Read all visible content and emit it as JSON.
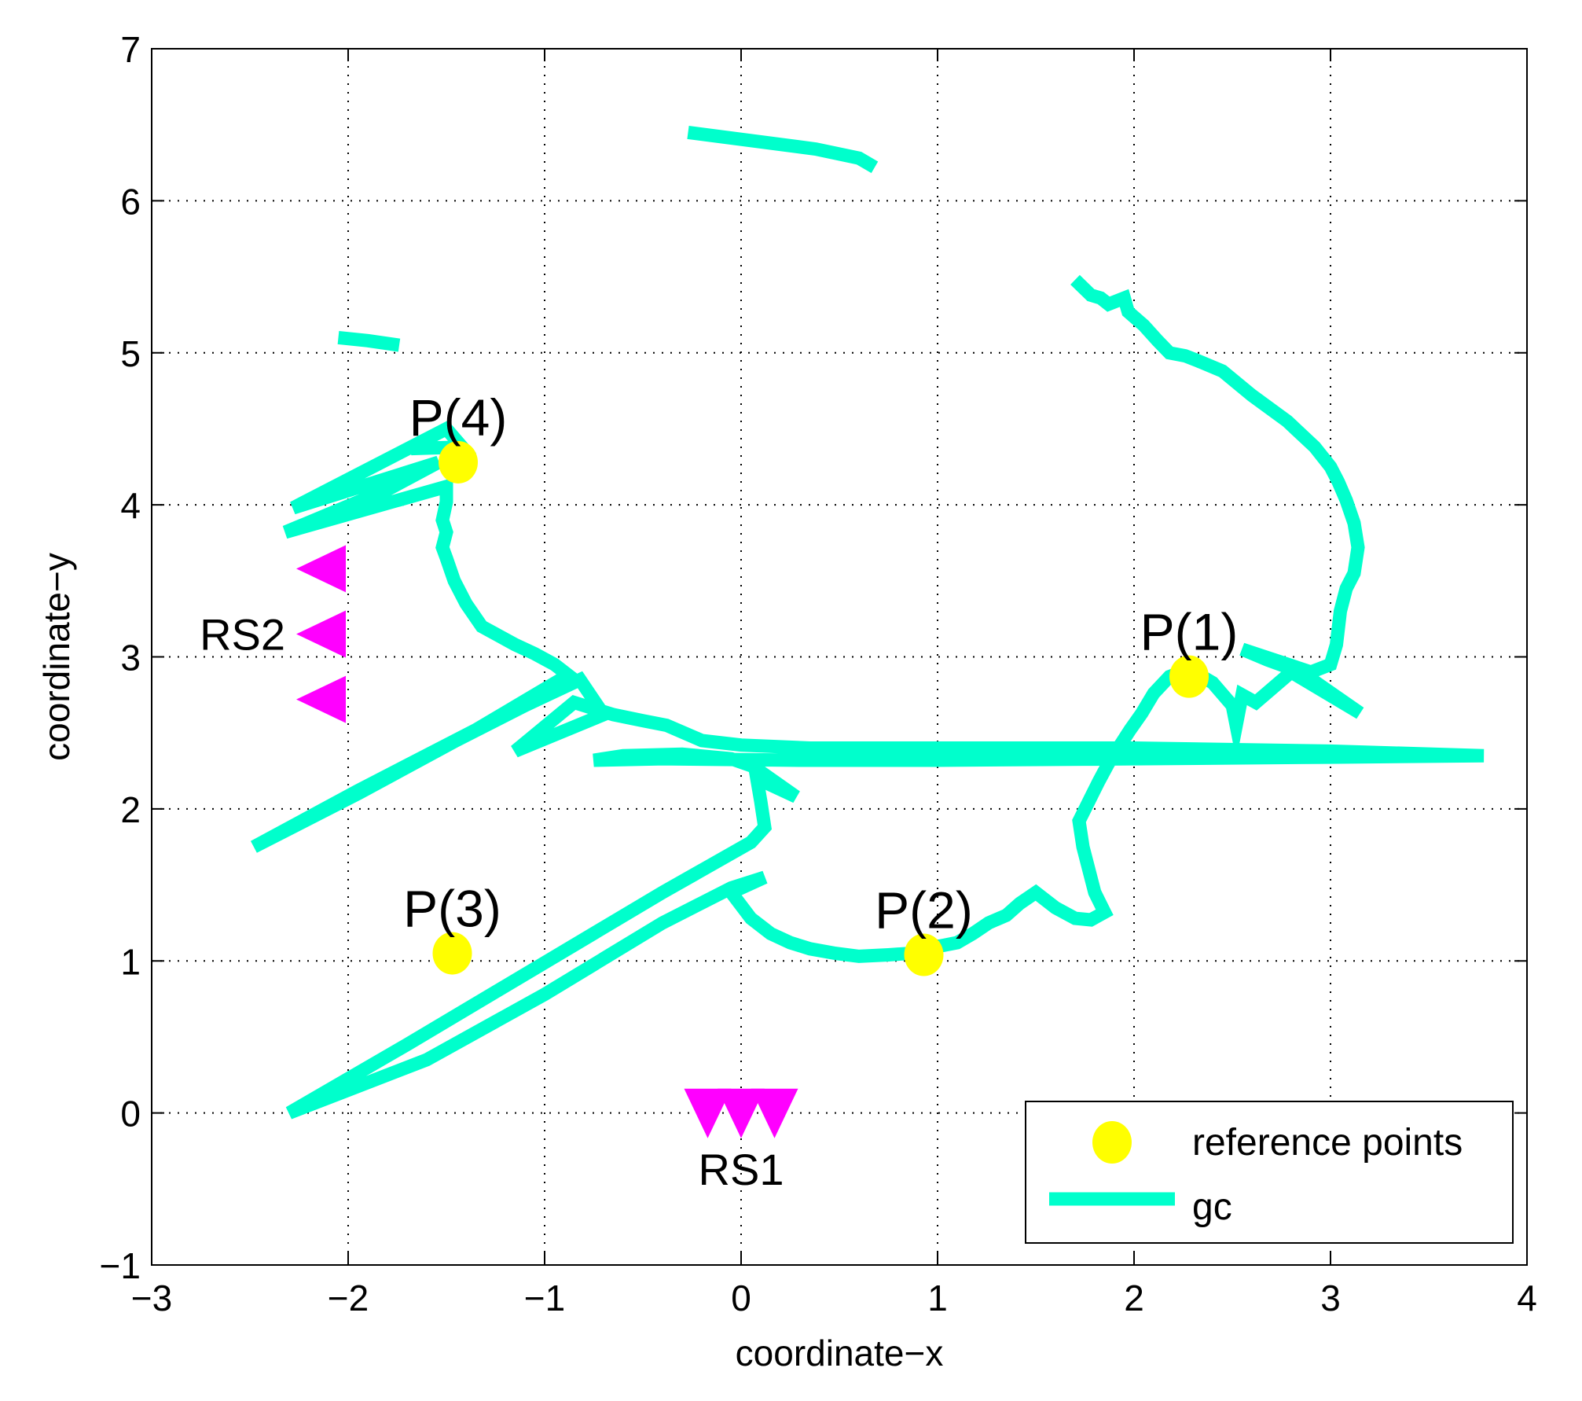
{
  "chart_data": {
    "type": "scatter",
    "title": "",
    "xlabel": "coordinate−x",
    "ylabel": "coordinate−y",
    "xlim": [
      -3,
      4
    ],
    "ylim": [
      -1,
      7
    ],
    "x_ticks": [
      -3,
      -2,
      -1,
      0,
      1,
      2,
      3,
      4
    ],
    "y_ticks": [
      -1,
      0,
      1,
      2,
      3,
      4,
      5,
      6,
      7
    ],
    "x_tick_labels": [
      "−3",
      "−2",
      "−1",
      "0",
      "1",
      "2",
      "3",
      "4"
    ],
    "y_tick_labels": [
      "−1",
      "0",
      "1",
      "2",
      "3",
      "4",
      "5",
      "6",
      "7"
    ],
    "grid": "dotted",
    "legend_position": "bottom-right",
    "colors": {
      "reference": "#ffff00",
      "gc": "#00ffcc",
      "station": "#ff00ff"
    },
    "reference_points": {
      "name": "reference points",
      "points": [
        {
          "label": "P(1)",
          "x": 2.28,
          "y": 2.87
        },
        {
          "label": "P(2)",
          "x": 0.93,
          "y": 1.04
        },
        {
          "label": "P(3)",
          "x": -1.47,
          "y": 1.05
        },
        {
          "label": "P(4)",
          "x": -1.44,
          "y": 4.28
        }
      ]
    },
    "gc_series": {
      "name": "gc",
      "segments": [
        [
          [
            -0.27,
            6.45
          ],
          [
            0.38,
            6.34
          ],
          [
            0.6,
            6.28
          ],
          [
            0.68,
            6.22
          ]
        ],
        [
          [
            -2.05,
            5.1
          ],
          [
            -1.9,
            5.08
          ],
          [
            -1.74,
            5.05
          ]
        ],
        [
          [
            1.7,
            5.48
          ],
          [
            1.78,
            5.38
          ],
          [
            1.83,
            5.36
          ],
          [
            1.87,
            5.32
          ],
          [
            1.95,
            5.36
          ],
          [
            1.97,
            5.27
          ],
          [
            2.05,
            5.18
          ],
          [
            2.12,
            5.08
          ],
          [
            2.18,
            5.0
          ],
          [
            2.26,
            4.98
          ],
          [
            2.32,
            4.95
          ],
          [
            2.45,
            4.88
          ],
          [
            2.6,
            4.72
          ],
          [
            2.78,
            4.55
          ],
          [
            2.92,
            4.38
          ],
          [
            3.0,
            4.25
          ],
          [
            3.04,
            4.15
          ],
          [
            3.08,
            4.03
          ],
          [
            3.12,
            3.88
          ],
          [
            3.14,
            3.72
          ],
          [
            3.12,
            3.55
          ],
          [
            3.08,
            3.45
          ],
          [
            3.05,
            3.3
          ],
          [
            3.03,
            3.08
          ],
          [
            3.0,
            2.95
          ],
          [
            2.9,
            2.9
          ],
          [
            2.55,
            3.05
          ],
          [
            2.68,
            2.98
          ],
          [
            2.85,
            2.9
          ],
          [
            3.15,
            2.63
          ],
          [
            2.8,
            2.9
          ],
          [
            2.62,
            2.7
          ],
          [
            2.55,
            2.75
          ],
          [
            2.52,
            2.55
          ],
          [
            2.5,
            2.68
          ],
          [
            2.4,
            2.83
          ],
          [
            2.28,
            2.92
          ],
          [
            2.18,
            2.87
          ],
          [
            2.1,
            2.76
          ],
          [
            2.04,
            2.63
          ],
          [
            1.98,
            2.52
          ],
          [
            1.92,
            2.4
          ],
          [
            1.87,
            2.3
          ],
          [
            1.82,
            2.18
          ],
          [
            1.77,
            2.05
          ],
          [
            1.72,
            1.92
          ],
          [
            1.74,
            1.75
          ],
          [
            1.8,
            1.45
          ],
          [
            1.85,
            1.32
          ],
          [
            1.78,
            1.27
          ],
          [
            1.7,
            1.28
          ],
          [
            1.6,
            1.35
          ],
          [
            1.5,
            1.45
          ],
          [
            1.42,
            1.38
          ],
          [
            1.35,
            1.3
          ],
          [
            1.26,
            1.25
          ],
          [
            1.18,
            1.18
          ],
          [
            1.1,
            1.12
          ],
          [
            1.02,
            1.1
          ],
          [
            0.95,
            1.08
          ],
          [
            0.86,
            1.05
          ],
          [
            0.75,
            1.04
          ],
          [
            0.6,
            1.03
          ],
          [
            0.48,
            1.05
          ],
          [
            0.35,
            1.08
          ],
          [
            0.25,
            1.12
          ],
          [
            0.15,
            1.18
          ],
          [
            0.05,
            1.28
          ],
          [
            -0.05,
            1.45
          ],
          [
            0.12,
            1.55
          ],
          [
            -0.05,
            1.48
          ],
          [
            -0.4,
            1.25
          ],
          [
            -1.0,
            0.78
          ],
          [
            -1.6,
            0.35
          ],
          [
            -2.3,
            0.0
          ],
          [
            -1.7,
            0.45
          ],
          [
            -1.05,
            0.95
          ],
          [
            -0.4,
            1.45
          ],
          [
            0.05,
            1.78
          ],
          [
            0.12,
            1.88
          ],
          [
            0.1,
            2.05
          ],
          [
            0.08,
            2.2
          ],
          [
            0.28,
            2.08
          ],
          [
            0.06,
            2.28
          ],
          [
            -0.05,
            2.33
          ],
          [
            -0.3,
            2.36
          ],
          [
            -0.6,
            2.35
          ],
          [
            -0.75,
            2.32
          ],
          [
            -0.4,
            2.33
          ],
          [
            0.3,
            2.32
          ],
          [
            1.0,
            2.32
          ],
          [
            2.0,
            2.33
          ],
          [
            3.0,
            2.34
          ],
          [
            3.78,
            2.35
          ],
          [
            3.0,
            2.38
          ],
          [
            2.0,
            2.4
          ],
          [
            1.0,
            2.4
          ],
          [
            0.35,
            2.4
          ],
          [
            0.0,
            2.42
          ],
          [
            -0.2,
            2.45
          ],
          [
            -0.38,
            2.55
          ],
          [
            -0.5,
            2.58
          ],
          [
            -0.65,
            2.62
          ],
          [
            -0.85,
            2.7
          ],
          [
            -1.15,
            2.38
          ],
          [
            -0.7,
            2.62
          ],
          [
            -0.82,
            2.85
          ],
          [
            -1.1,
            2.68
          ],
          [
            -1.45,
            2.45
          ],
          [
            -1.95,
            2.1
          ],
          [
            -2.48,
            1.75
          ],
          [
            -1.95,
            2.12
          ],
          [
            -1.35,
            2.52
          ],
          [
            -0.88,
            2.88
          ],
          [
            -0.95,
            2.95
          ],
          [
            -1.05,
            3.02
          ],
          [
            -1.15,
            3.08
          ],
          [
            -1.32,
            3.2
          ],
          [
            -1.4,
            3.35
          ],
          [
            -1.46,
            3.5
          ],
          [
            -1.5,
            3.65
          ],
          [
            -1.52,
            3.72
          ],
          [
            -1.5,
            3.82
          ],
          [
            -1.52,
            3.9
          ],
          [
            -1.5,
            4.02
          ],
          [
            -1.5,
            4.12
          ],
          [
            -2.32,
            3.82
          ],
          [
            -1.8,
            4.1
          ],
          [
            -1.54,
            4.28
          ],
          [
            -2.28,
            3.98
          ],
          [
            -1.5,
            4.5
          ],
          [
            -1.42,
            4.38
          ],
          [
            -1.68,
            4.37
          ]
        ]
      ]
    },
    "stations": [
      {
        "label": "RS1",
        "direction": "down",
        "points": [
          {
            "x": -0.17,
            "y": 0.02
          },
          {
            "x": 0.0,
            "y": 0.02
          },
          {
            "x": 0.17,
            "y": 0.02
          }
        ]
      },
      {
        "label": "RS2",
        "direction": "left",
        "points": [
          {
            "x": -2.12,
            "y": 3.58
          },
          {
            "x": -2.12,
            "y": 3.15
          },
          {
            "x": -2.12,
            "y": 2.72
          }
        ]
      }
    ]
  }
}
